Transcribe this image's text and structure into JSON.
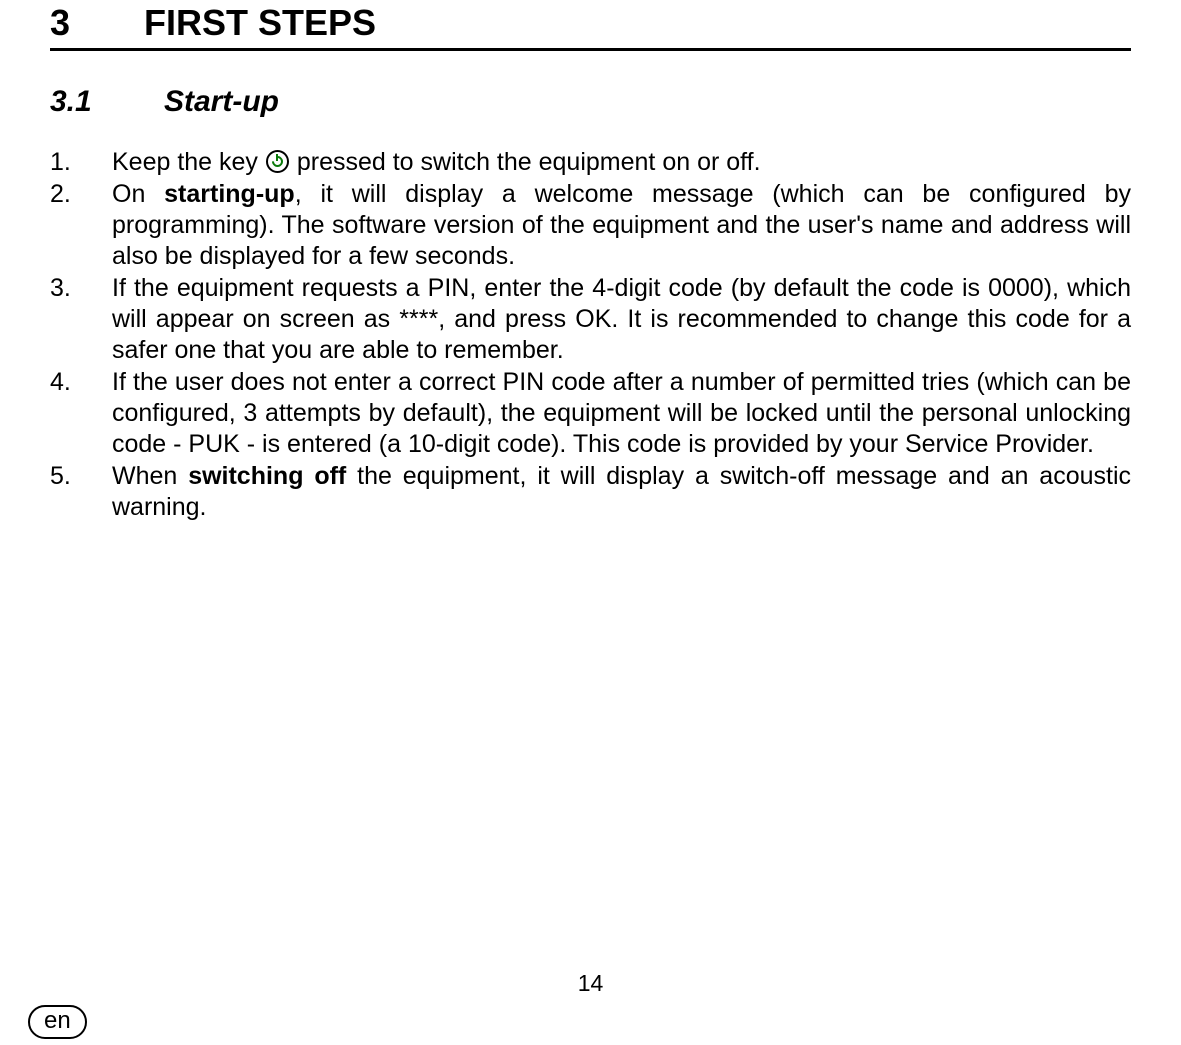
{
  "section": {
    "number": "3",
    "title": "FIRST STEPS"
  },
  "subsection": {
    "number": "3.1",
    "title": "Start-up"
  },
  "steps": [
    {
      "n": "1.",
      "pre": "Keep the key ",
      "post": " pressed to switch the equipment on or off."
    },
    {
      "n": "2.",
      "a": "On ",
      "bold": "starting-up",
      "b": ", it will display a welcome message (which can be configured by programming). The software version of the equipment and the user's name and address will also be displayed for a few seconds."
    },
    {
      "n": "3.",
      "text": "If the equipment requests a PIN, enter the 4-digit code (by default the code is 0000), which will appear on screen as ****, and press OK. It is recommended to change this code for a safer one that you are able to remember."
    },
    {
      "n": "4.",
      "text": "If the user does not enter a correct PIN code after a number of permitted tries (which can be configured, 3 attempts by default), the equipment will be locked until the personal unlocking code - PUK - is entered (a 10-digit code). This code is provided by your Service Provider."
    },
    {
      "n": "5.",
      "a": "When ",
      "bold": "switching off",
      "b": " the equipment, it will display a switch-off message and an acoustic warning."
    }
  ],
  "pageNumber": "14",
  "lang": "en"
}
